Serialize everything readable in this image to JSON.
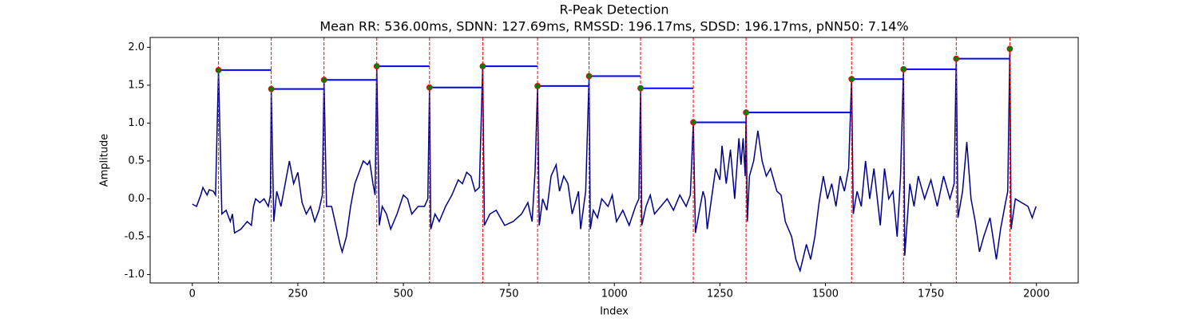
{
  "chart_data": {
    "type": "line",
    "title": "R-Peak Detection",
    "subtitle": "Mean RR: 536.00ms, SDNN: 127.69ms, RMSSD: 196.17ms, SDSD: 196.17ms, pNN50: 7.14%",
    "x_label": "Index",
    "y_label": "Amplitude",
    "xlim": [
      -99.95,
      2098.95
    ],
    "ylim": [
      -1.11,
      2.13
    ],
    "xticks": [
      0,
      250,
      500,
      750,
      1000,
      1250,
      1500,
      1750,
      2000
    ],
    "yticks": [
      {
        "value": -1,
        "label": "-1.0"
      },
      -0.5,
      {
        "value": 0,
        "label": "0.0"
      },
      0.5,
      {
        "value": 1,
        "label": "1.0"
      },
      1.5,
      {
        "value": 2,
        "label": "2.0"
      }
    ],
    "signal": {
      "color": "#00008b",
      "x": [
        0,
        10,
        20,
        25,
        35,
        40,
        50,
        55,
        62,
        70,
        80,
        90,
        95,
        100,
        115,
        130,
        140,
        145,
        150,
        160,
        170,
        180,
        185,
        187,
        193,
        200,
        210,
        230,
        240,
        250,
        260,
        270,
        280,
        290,
        300,
        308,
        312,
        318,
        330,
        340,
        350,
        355,
        365,
        375,
        385,
        395,
        405,
        415,
        420,
        428,
        433,
        437,
        443,
        450,
        460,
        470,
        485,
        500,
        510,
        520,
        535,
        550,
        558,
        562,
        565,
        575,
        585,
        600,
        615,
        630,
        640,
        650,
        660,
        670,
        680,
        688,
        692,
        705,
        720,
        740,
        760,
        780,
        795,
        805,
        812,
        818,
        822,
        830,
        840,
        850,
        862,
        870,
        880,
        890,
        900,
        915,
        920,
        932,
        940,
        943,
        950,
        960,
        970,
        985,
        995,
        1005,
        1020,
        1035,
        1050,
        1058,
        1062,
        1065,
        1075,
        1085,
        1095,
        1110,
        1125,
        1140,
        1155,
        1170,
        1180,
        1187,
        1192,
        1200,
        1210,
        1215,
        1220,
        1240,
        1250,
        1255,
        1265,
        1275,
        1285,
        1295,
        1300,
        1305,
        1310,
        1312,
        1315,
        1320,
        1330,
        1340,
        1350,
        1360,
        1370,
        1385,
        1395,
        1405,
        1420,
        1430,
        1440,
        1455,
        1465,
        1475,
        1485,
        1495,
        1505,
        1515,
        1525,
        1535,
        1545,
        1555,
        1562,
        1566,
        1575,
        1585,
        1595,
        1605,
        1615,
        1630,
        1640,
        1650,
        1660,
        1670,
        1678,
        1685,
        1688,
        1700,
        1710,
        1720,
        1735,
        1750,
        1765,
        1780,
        1795,
        1805,
        1810,
        1814,
        1825,
        1835,
        1845,
        1855,
        1865,
        1875,
        1890,
        1905,
        1915,
        1925,
        1932,
        1937,
        1940,
        1950,
        1965,
        1980,
        1990,
        1999
      ],
      "y": [
        -0.07,
        -0.1,
        0.05,
        0.15,
        0.05,
        0.12,
        0.1,
        0.05,
        1.7,
        -0.2,
        -0.15,
        -0.3,
        -0.2,
        -0.45,
        -0.4,
        -0.3,
        -0.35,
        -0.1,
        0,
        -0.05,
        0,
        -0.1,
        0.05,
        1.45,
        -0.3,
        0.1,
        -0.1,
        0.5,
        0.2,
        0.35,
        -0.05,
        -0.2,
        -0.1,
        -0.3,
        -0.15,
        0.05,
        1.57,
        -0.1,
        -0.1,
        -0.35,
        -0.6,
        -0.7,
        -0.5,
        -0.1,
        0.2,
        0.35,
        0.5,
        0.45,
        0.5,
        0.2,
        0.05,
        1.75,
        -0.35,
        -0.1,
        -0.2,
        -0.4,
        -0.2,
        0.05,
        0,
        -0.2,
        -0.1,
        -0.1,
        0,
        1.47,
        -0.4,
        -0.2,
        -0.3,
        -0.1,
        0.05,
        0.25,
        0.2,
        0.35,
        0.3,
        0.1,
        0.15,
        1.75,
        -0.35,
        -0.2,
        -0.15,
        -0.35,
        -0.3,
        -0.2,
        -0.05,
        -0.3,
        0.35,
        1.49,
        -0.35,
        0,
        -0.15,
        0.3,
        0.45,
        0.1,
        0.3,
        0.2,
        -0.2,
        0.1,
        -0.4,
        0.1,
        1.62,
        -0.4,
        -0.15,
        -0.25,
        0,
        -0.1,
        0.05,
        -0.3,
        -0.15,
        -0.35,
        -0.1,
        0,
        1.46,
        -0.35,
        -0.1,
        0.05,
        -0.2,
        -0.1,
        0,
        -0.15,
        0.05,
        -0.1,
        0.05,
        1.01,
        -0.45,
        -0.2,
        0.1,
        0,
        -0.4,
        0.4,
        0.25,
        0.7,
        0.2,
        0.65,
        0,
        0.8,
        0.45,
        0.8,
        0.3,
        1.14,
        -0.3,
        0.3,
        0.5,
        0.9,
        0.5,
        0.3,
        0.4,
        0.1,
        0.05,
        -0.3,
        -0.5,
        -0.8,
        -0.95,
        -0.6,
        -0.8,
        -0.5,
        -0.05,
        0.3,
        0,
        0.2,
        -0.1,
        0.3,
        0.1,
        0.4,
        1.58,
        -0.2,
        0.1,
        -0.1,
        0.5,
        0,
        0.4,
        -0.35,
        0.4,
        0,
        0.1,
        -0.5,
        0.3,
        1.71,
        -0.75,
        0.2,
        -0.1,
        0.3,
        0,
        0.25,
        -0.1,
        0.3,
        0,
        0.2,
        1.85,
        -0.25,
        0.1,
        0.75,
        0,
        -0.3,
        -0.7,
        -0.5,
        -0.25,
        -0.8,
        -0.4,
        -0.1,
        0.1,
        1.98,
        -0.4,
        0,
        -0.05,
        -0.1,
        -0.25,
        -0.1
      ]
    },
    "peaks": {
      "color": "green",
      "edge_color": "red",
      "x": [
        62,
        187,
        312,
        437,
        562,
        688,
        818,
        940,
        1062,
        1187,
        1312,
        1562,
        1685,
        1810,
        1937
      ],
      "y": [
        1.7,
        1.45,
        1.57,
        1.75,
        1.47,
        1.75,
        1.49,
        1.62,
        1.46,
        1.01,
        1.14,
        1.58,
        1.71,
        1.85,
        1.98
      ]
    },
    "peak_line_color": "red",
    "rr_color": "blue"
  }
}
